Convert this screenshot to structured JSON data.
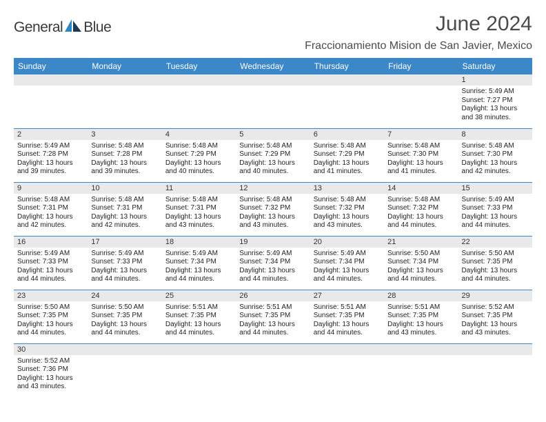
{
  "logo": {
    "word1": "General",
    "word2": "Blue"
  },
  "title": "June 2024",
  "subtitle": "Fraccionamiento Mision de San Javier, Mexico",
  "colors": {
    "header_bg": "#3c87c8",
    "header_text": "#ffffff",
    "daynum_bg": "#e9e9e9",
    "row_border": "#3c87c8",
    "title_text": "#4b4b4b",
    "logo_blue": "#2e86c1",
    "logo_dark": "#1b3a57"
  },
  "dayHeaders": [
    "Sunday",
    "Monday",
    "Tuesday",
    "Wednesday",
    "Thursday",
    "Friday",
    "Saturday"
  ],
  "weeks": [
    [
      null,
      null,
      null,
      null,
      null,
      null,
      {
        "n": "1",
        "sr": "5:49 AM",
        "ss": "7:27 PM",
        "dl": "13 hours and 38 minutes."
      }
    ],
    [
      {
        "n": "2",
        "sr": "5:49 AM",
        "ss": "7:28 PM",
        "dl": "13 hours and 39 minutes."
      },
      {
        "n": "3",
        "sr": "5:48 AM",
        "ss": "7:28 PM",
        "dl": "13 hours and 39 minutes."
      },
      {
        "n": "4",
        "sr": "5:48 AM",
        "ss": "7:29 PM",
        "dl": "13 hours and 40 minutes."
      },
      {
        "n": "5",
        "sr": "5:48 AM",
        "ss": "7:29 PM",
        "dl": "13 hours and 40 minutes."
      },
      {
        "n": "6",
        "sr": "5:48 AM",
        "ss": "7:29 PM",
        "dl": "13 hours and 41 minutes."
      },
      {
        "n": "7",
        "sr": "5:48 AM",
        "ss": "7:30 PM",
        "dl": "13 hours and 41 minutes."
      },
      {
        "n": "8",
        "sr": "5:48 AM",
        "ss": "7:30 PM",
        "dl": "13 hours and 42 minutes."
      }
    ],
    [
      {
        "n": "9",
        "sr": "5:48 AM",
        "ss": "7:31 PM",
        "dl": "13 hours and 42 minutes."
      },
      {
        "n": "10",
        "sr": "5:48 AM",
        "ss": "7:31 PM",
        "dl": "13 hours and 42 minutes."
      },
      {
        "n": "11",
        "sr": "5:48 AM",
        "ss": "7:31 PM",
        "dl": "13 hours and 43 minutes."
      },
      {
        "n": "12",
        "sr": "5:48 AM",
        "ss": "7:32 PM",
        "dl": "13 hours and 43 minutes."
      },
      {
        "n": "13",
        "sr": "5:48 AM",
        "ss": "7:32 PM",
        "dl": "13 hours and 43 minutes."
      },
      {
        "n": "14",
        "sr": "5:48 AM",
        "ss": "7:32 PM",
        "dl": "13 hours and 44 minutes."
      },
      {
        "n": "15",
        "sr": "5:49 AM",
        "ss": "7:33 PM",
        "dl": "13 hours and 44 minutes."
      }
    ],
    [
      {
        "n": "16",
        "sr": "5:49 AM",
        "ss": "7:33 PM",
        "dl": "13 hours and 44 minutes."
      },
      {
        "n": "17",
        "sr": "5:49 AM",
        "ss": "7:33 PM",
        "dl": "13 hours and 44 minutes."
      },
      {
        "n": "18",
        "sr": "5:49 AM",
        "ss": "7:34 PM",
        "dl": "13 hours and 44 minutes."
      },
      {
        "n": "19",
        "sr": "5:49 AM",
        "ss": "7:34 PM",
        "dl": "13 hours and 44 minutes."
      },
      {
        "n": "20",
        "sr": "5:49 AM",
        "ss": "7:34 PM",
        "dl": "13 hours and 44 minutes."
      },
      {
        "n": "21",
        "sr": "5:50 AM",
        "ss": "7:34 PM",
        "dl": "13 hours and 44 minutes."
      },
      {
        "n": "22",
        "sr": "5:50 AM",
        "ss": "7:35 PM",
        "dl": "13 hours and 44 minutes."
      }
    ],
    [
      {
        "n": "23",
        "sr": "5:50 AM",
        "ss": "7:35 PM",
        "dl": "13 hours and 44 minutes."
      },
      {
        "n": "24",
        "sr": "5:50 AM",
        "ss": "7:35 PM",
        "dl": "13 hours and 44 minutes."
      },
      {
        "n": "25",
        "sr": "5:51 AM",
        "ss": "7:35 PM",
        "dl": "13 hours and 44 minutes."
      },
      {
        "n": "26",
        "sr": "5:51 AM",
        "ss": "7:35 PM",
        "dl": "13 hours and 44 minutes."
      },
      {
        "n": "27",
        "sr": "5:51 AM",
        "ss": "7:35 PM",
        "dl": "13 hours and 44 minutes."
      },
      {
        "n": "28",
        "sr": "5:51 AM",
        "ss": "7:35 PM",
        "dl": "13 hours and 43 minutes."
      },
      {
        "n": "29",
        "sr": "5:52 AM",
        "ss": "7:35 PM",
        "dl": "13 hours and 43 minutes."
      }
    ],
    [
      {
        "n": "30",
        "sr": "5:52 AM",
        "ss": "7:36 PM",
        "dl": "13 hours and 43 minutes."
      },
      null,
      null,
      null,
      null,
      null,
      null
    ]
  ],
  "labels": {
    "sunrise": "Sunrise: ",
    "sunset": "Sunset: ",
    "daylight": "Daylight: "
  }
}
